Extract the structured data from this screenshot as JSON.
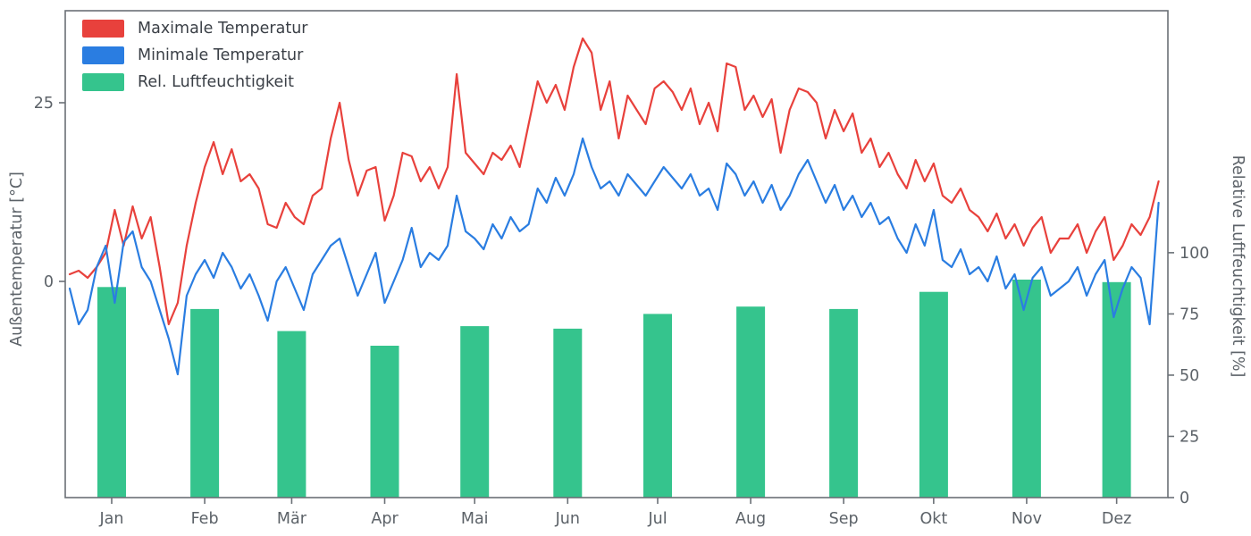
{
  "figure": {
    "background": "#ffffff",
    "axis_color": "#6a7076",
    "text_color": "#5c6268"
  },
  "chart_data": {
    "type": "line+bar",
    "title": "",
    "left_axis": {
      "label": "Außentemperatur [°C]",
      "ticks": [
        0,
        25
      ],
      "range": [
        -30.3,
        37.9
      ]
    },
    "right_axis": {
      "label": "Relative Luftfeuchtigkeit [%]",
      "ticks": [
        0,
        25,
        50,
        75,
        100
      ],
      "range": [
        0,
        199
      ]
    },
    "x_axis": {
      "tick_labels": [
        "Jan",
        "Feb",
        "Mär",
        "Apr",
        "Mai",
        "Jun",
        "Jul",
        "Aug",
        "Sep",
        "Okt",
        "Nov",
        "Dez"
      ],
      "tick_days": [
        14,
        45,
        74,
        105,
        135,
        166,
        196,
        227,
        258,
        288,
        319,
        349
      ],
      "range_days": [
        0,
        364
      ],
      "grid": false
    },
    "legend": [
      {
        "label": "Maximale Temperatur",
        "color": "#e8413c",
        "type": "line"
      },
      {
        "label": "Minimale Temperatur",
        "color": "#2a7de1",
        "type": "line"
      },
      {
        "label": "Rel. Luftfeuchtigkeit",
        "color": "#35c48d",
        "type": "bar"
      }
    ],
    "days": [
      0,
      3,
      6,
      9,
      12,
      15,
      18,
      21,
      24,
      27,
      30,
      33,
      36,
      39,
      42,
      45,
      48,
      51,
      54,
      57,
      60,
      63,
      66,
      69,
      72,
      75,
      78,
      81,
      84,
      87,
      90,
      93,
      96,
      99,
      102,
      105,
      108,
      111,
      114,
      117,
      120,
      123,
      126,
      129,
      132,
      135,
      138,
      141,
      144,
      147,
      150,
      153,
      156,
      159,
      162,
      165,
      168,
      171,
      174,
      177,
      180,
      183,
      186,
      189,
      192,
      195,
      198,
      201,
      204,
      207,
      210,
      213,
      216,
      219,
      222,
      225,
      228,
      231,
      234,
      237,
      240,
      243,
      246,
      249,
      252,
      255,
      258,
      261,
      264,
      267,
      270,
      273,
      276,
      279,
      282,
      285,
      288,
      291,
      294,
      297,
      300,
      303,
      306,
      309,
      312,
      315,
      318,
      321,
      324,
      327,
      330,
      333,
      336,
      339,
      342,
      345,
      348,
      351,
      354,
      357,
      360,
      363
    ],
    "series": [
      {
        "name": "Maximale Temperatur",
        "color": "#e8413c",
        "unit": "°C",
        "values": [
          1,
          1.5,
          0.5,
          2,
          4,
          10,
          5,
          10.5,
          6,
          9,
          2,
          -6,
          -3,
          5,
          11,
          16,
          19.5,
          15,
          18.5,
          14,
          15,
          13,
          8,
          7.5,
          11,
          9,
          8,
          12,
          13,
          20,
          25,
          17,
          12,
          15.5,
          16,
          8.5,
          12,
          18,
          17.5,
          14,
          16,
          13,
          16,
          29,
          18,
          16.5,
          15,
          18,
          17,
          19,
          16,
          22,
          28,
          25,
          27.5,
          24,
          30,
          34,
          32,
          24,
          28,
          20,
          26,
          24,
          22,
          27,
          28,
          26.5,
          24,
          27,
          22,
          25,
          21,
          30.5,
          30,
          24,
          26,
          23,
          25.5,
          18,
          24,
          27,
          26.5,
          25,
          20,
          24,
          21,
          23.5,
          18,
          20,
          16,
          18,
          15,
          13,
          17,
          14,
          16.5,
          12,
          11,
          13,
          10,
          9,
          7,
          9.5,
          6,
          8,
          5,
          7.5,
          9,
          4,
          6,
          6,
          8,
          4,
          7,
          9,
          3,
          5,
          8,
          6.5,
          9,
          14
        ]
      },
      {
        "name": "Minimale Temperatur",
        "color": "#2a7de1",
        "unit": "°C",
        "values": [
          -1,
          -6,
          -4,
          2,
          5,
          -3,
          5.5,
          7,
          2,
          0,
          -4,
          -8,
          -13,
          -2,
          1,
          3,
          0.5,
          4,
          2,
          -1,
          1,
          -2,
          -5.5,
          0,
          2,
          -1,
          -4,
          1,
          3,
          5,
          6,
          2,
          -2,
          1,
          4,
          -3,
          0,
          3,
          7.5,
          2,
          4,
          3,
          5,
          12,
          7,
          6,
          4.5,
          8,
          6,
          9,
          7,
          8,
          13,
          11,
          14.5,
          12,
          15,
          20,
          16,
          13,
          14,
          12,
          15,
          13.5,
          12,
          14,
          16,
          14.5,
          13,
          15,
          12,
          13,
          10,
          16.5,
          15,
          12,
          14,
          11,
          13.5,
          10,
          12,
          15,
          17,
          14,
          11,
          13.5,
          10,
          12,
          9,
          11,
          8,
          9,
          6,
          4,
          8,
          5,
          10,
          3,
          2,
          4.5,
          1,
          2,
          0,
          3.5,
          -1,
          1,
          -4,
          0.5,
          2,
          -2,
          -1,
          0,
          2,
          -2,
          1,
          3,
          -5,
          -1,
          2,
          0.5,
          -6,
          11
        ]
      }
    ],
    "humidity": {
      "name": "Rel. Luftfeuchtigkeit",
      "color": "#35c48d",
      "unit": "%",
      "months": [
        "Jan",
        "Feb",
        "Mär",
        "Apr",
        "Mai",
        "Jun",
        "Jul",
        "Aug",
        "Sep",
        "Okt",
        "Nov",
        "Dez"
      ],
      "values": [
        86,
        77,
        68,
        62,
        70,
        69,
        75,
        78,
        77,
        84,
        89,
        88
      ]
    }
  }
}
